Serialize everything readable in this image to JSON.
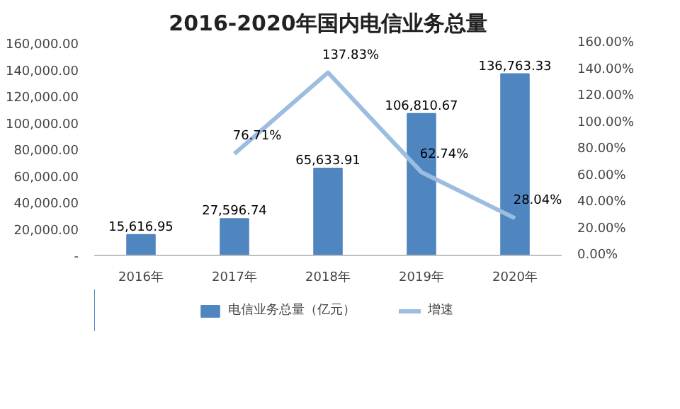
{
  "chart_data": {
    "type": "bar",
    "title": "2016-2020年国内电信业务总量",
    "categories": [
      "2016年",
      "2017年",
      "2018年",
      "2019年",
      "2020年"
    ],
    "series": [
      {
        "name": "电信业务总量（亿元）",
        "color": "#4f86c0",
        "values": [
          15616.95,
          27596.74,
          65633.91,
          106810.67,
          136763.33
        ],
        "value_labels": [
          "15,616.95",
          "27,596.74",
          "65,633.91",
          "106,810.67",
          "136,763.33"
        ]
      },
      {
        "name": "增速",
        "type": "line",
        "axis": "y2",
        "color": "#9dbde0",
        "values": [
          null,
          76.71,
          137.83,
          62.74,
          28.04
        ],
        "value_labels": [
          null,
          "76.71%",
          "137.83%",
          "62.74%",
          "28.04%"
        ]
      }
    ],
    "ylim": [
      0,
      160000
    ],
    "yticks": [
      {
        "value": 0,
        "label": "-"
      },
      {
        "value": 20000,
        "label": "20,000.00"
      },
      {
        "value": 40000,
        "label": "40,000.00"
      },
      {
        "value": 60000,
        "label": "60,000.00"
      },
      {
        "value": 80000,
        "label": "80,000.00"
      },
      {
        "value": 100000,
        "label": "100,000.00"
      },
      {
        "value": 120000,
        "label": "120,000.00"
      },
      {
        "value": 140000,
        "label": "140,000.00"
      },
      {
        "value": 160000,
        "label": "160,000.00"
      }
    ],
    "y2lim": [
      0,
      160
    ],
    "y2ticks": [
      {
        "value": 0,
        "label": "0.00%"
      },
      {
        "value": 20,
        "label": "20.00%"
      },
      {
        "value": 40,
        "label": "40.00%"
      },
      {
        "value": 60,
        "label": "60.00%"
      },
      {
        "value": 80,
        "label": "80.00%"
      },
      {
        "value": 100,
        "label": "100.00%"
      },
      {
        "value": 120,
        "label": "120.00%"
      },
      {
        "value": 140,
        "label": "140.00%"
      },
      {
        "value": 160,
        "label": "160.00%"
      }
    ],
    "grid": false,
    "legend": "bottom"
  }
}
